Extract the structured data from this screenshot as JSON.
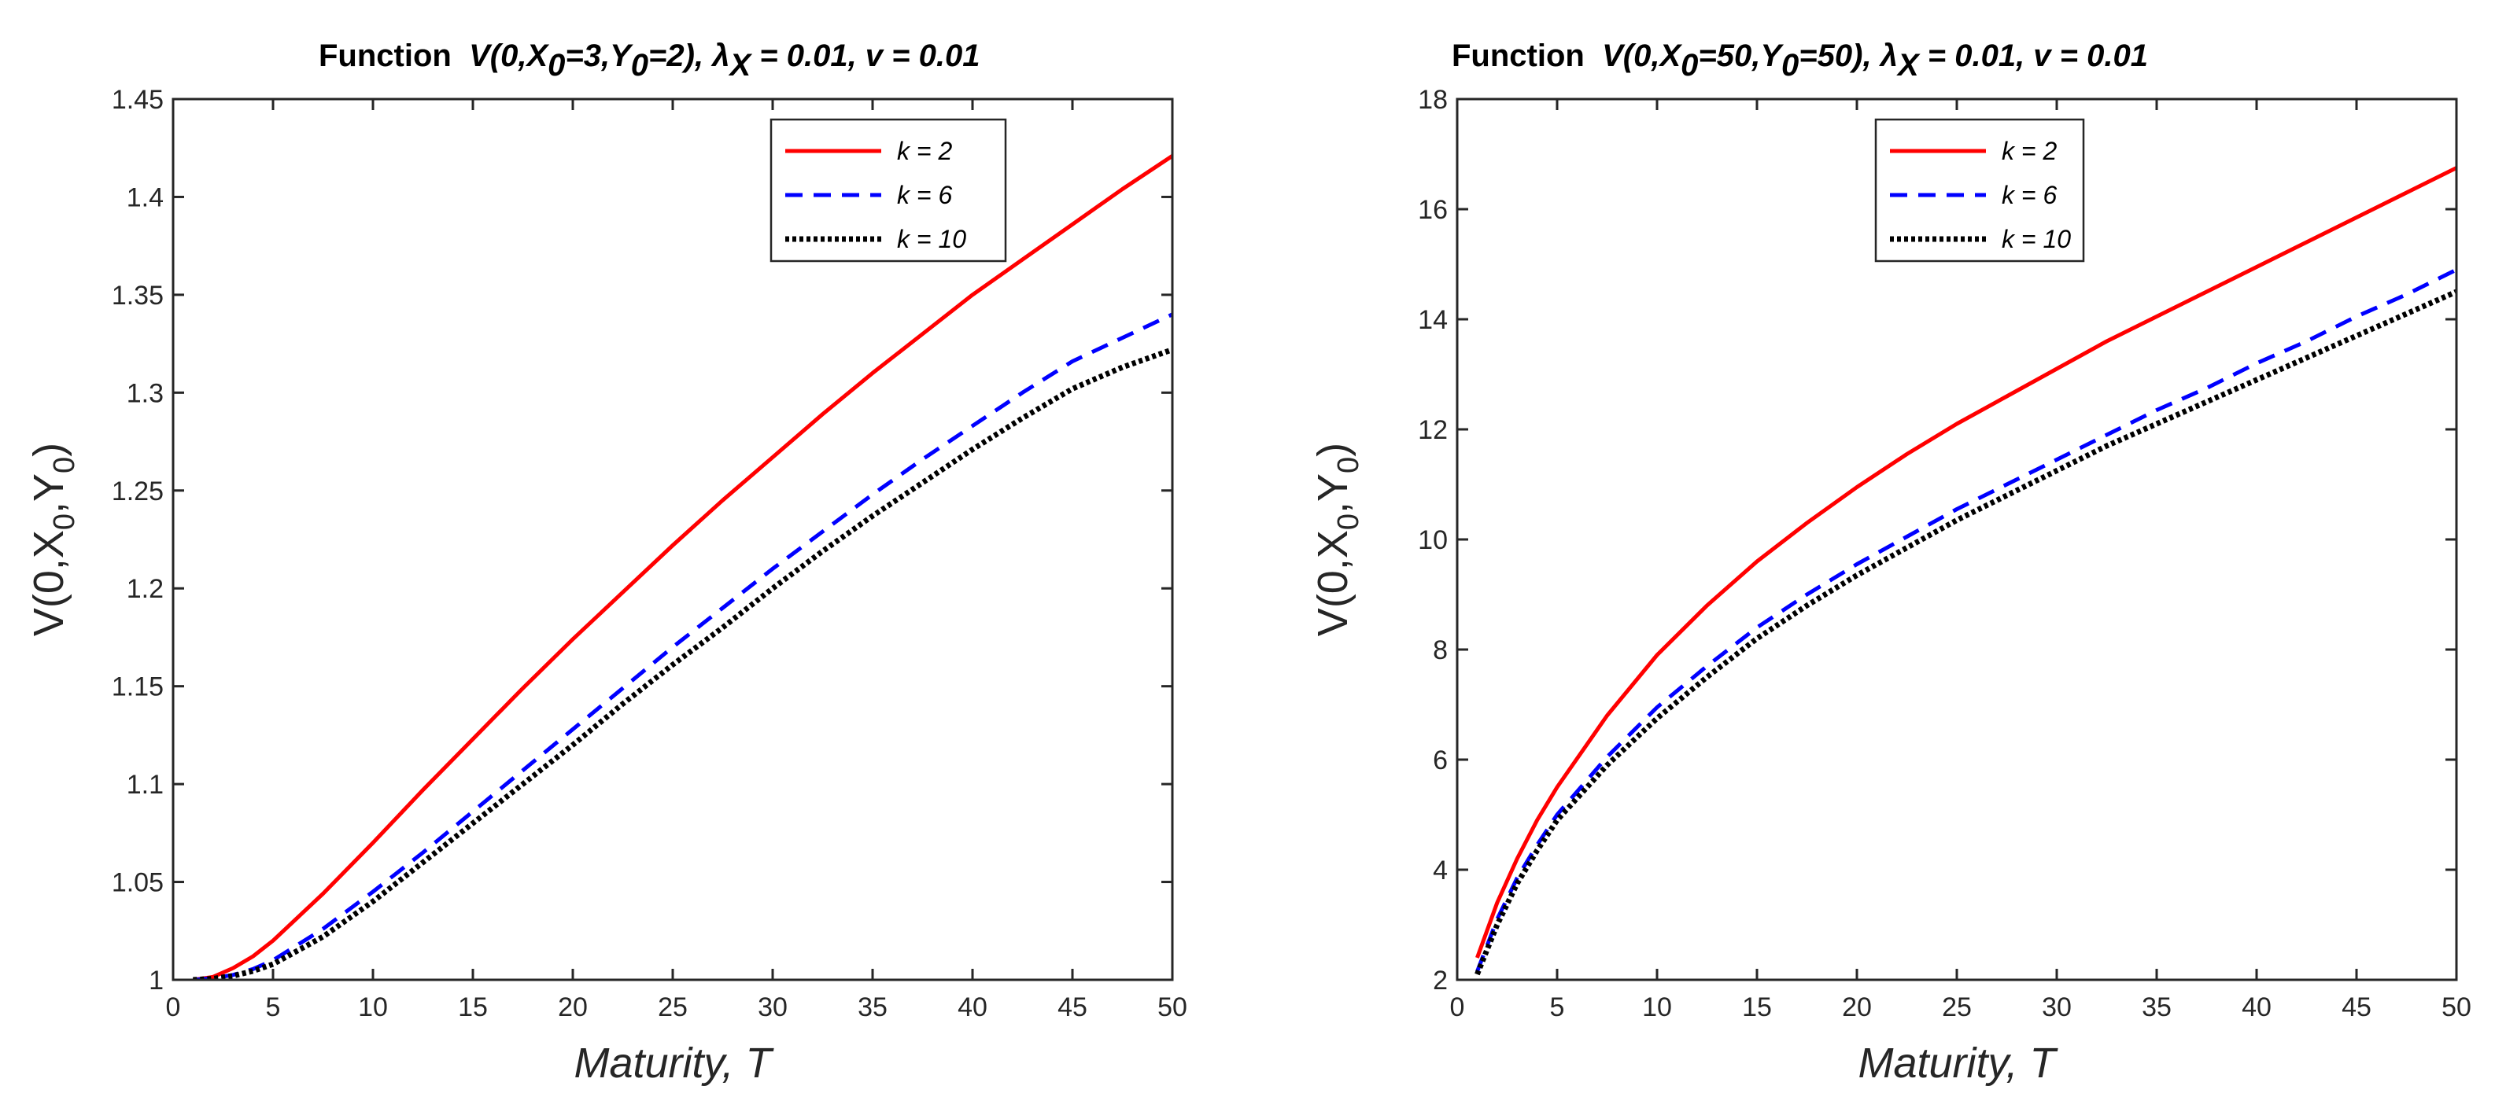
{
  "chart_data": [
    {
      "type": "line",
      "title": {
        "prefix": "Function",
        "formula": "V(0,X0=3,Y0=2), λX = 0.01, v = 0.01",
        "parts": [
          "V(0,X",
          "0",
          "=3,Y",
          "0",
          "=2), ",
          "λ",
          "X",
          " = 0.01, v = 0.01"
        ]
      },
      "xlabel": "Maturity, T",
      "ylabel": "V(0,X0,Y0)",
      "ylabel_parts": [
        "V(0,X",
        "0",
        ",Y",
        "0",
        ")"
      ],
      "xlim": [
        0,
        50
      ],
      "ylim": [
        1,
        1.45
      ],
      "xticks": [
        0,
        5,
        10,
        15,
        20,
        25,
        30,
        35,
        40,
        45,
        50
      ],
      "yticks": [
        1,
        1.05,
        1.1,
        1.15,
        1.2,
        1.25,
        1.3,
        1.35,
        1.4,
        1.45
      ],
      "xtick_labels": [
        "0",
        "5",
        "10",
        "15",
        "20",
        "25",
        "30",
        "35",
        "40",
        "45",
        "50"
      ],
      "ytick_labels": [
        "1",
        "1.05",
        "1.1",
        "1.15",
        "1.2",
        "1.25",
        "1.3",
        "1.35",
        "1.4",
        "1.45"
      ],
      "legend_position": "top-right",
      "x": [
        1,
        2,
        3,
        4,
        5,
        7.5,
        10,
        12.5,
        15,
        17.5,
        20,
        22.5,
        25,
        27.5,
        30,
        32.5,
        35,
        37.5,
        40,
        42.5,
        45,
        47.5,
        50
      ],
      "series": [
        {
          "name": "k = 2",
          "color": "#ff0000",
          "style": "solid",
          "values": [
            1.0,
            1.0015,
            1.006,
            1.012,
            1.02,
            1.044,
            1.07,
            1.097,
            1.123,
            1.149,
            1.174,
            1.198,
            1.222,
            1.245,
            1.267,
            1.289,
            1.31,
            1.33,
            1.35,
            1.368,
            1.386,
            1.404,
            1.421
          ]
        },
        {
          "name": "k = 6",
          "color": "#0000ff",
          "style": "dashed",
          "values": [
            1.0,
            1.0008,
            1.0025,
            1.0055,
            1.01,
            1.026,
            1.045,
            1.065,
            1.086,
            1.107,
            1.128,
            1.149,
            1.17,
            1.19,
            1.21,
            1.229,
            1.248,
            1.266,
            1.283,
            1.3,
            1.316,
            1.328,
            1.34
          ]
        },
        {
          "name": "k = 10",
          "color": "#000000",
          "style": "dotted",
          "values": [
            1.0,
            1.0006,
            1.002,
            1.0045,
            1.008,
            1.022,
            1.04,
            1.06,
            1.08,
            1.1,
            1.12,
            1.141,
            1.161,
            1.18,
            1.2,
            1.219,
            1.237,
            1.254,
            1.271,
            1.287,
            1.302,
            1.313,
            1.322
          ]
        }
      ]
    },
    {
      "type": "line",
      "title": {
        "prefix": "Function",
        "formula": "V(0,X0=50,Y0=50), λX = 0.01, v = 0.01",
        "parts": [
          "V(0,X",
          "0",
          "=50,Y",
          "0",
          "=50), ",
          "λ",
          "X",
          " = 0.01, v = 0.01"
        ]
      },
      "xlabel": "Maturity, T",
      "ylabel": "V(0,X0,Y0)",
      "ylabel_parts": [
        "V(0,X",
        "0",
        ",Y",
        "0",
        ")"
      ],
      "xlim": [
        0,
        50
      ],
      "ylim": [
        2,
        18
      ],
      "xticks": [
        0,
        5,
        10,
        15,
        20,
        25,
        30,
        35,
        40,
        45,
        50
      ],
      "yticks": [
        2,
        4,
        6,
        8,
        10,
        12,
        14,
        16,
        18
      ],
      "xtick_labels": [
        "0",
        "5",
        "10",
        "15",
        "20",
        "25",
        "30",
        "35",
        "40",
        "45",
        "50"
      ],
      "ytick_labels": [
        "2",
        "4",
        "6",
        "8",
        "10",
        "12",
        "14",
        "16",
        "18"
      ],
      "legend_position": "top-left",
      "x": [
        1,
        2,
        3,
        4,
        5,
        7.5,
        10,
        12.5,
        15,
        17.5,
        20,
        22.5,
        25,
        27.5,
        30,
        32.5,
        35,
        37.5,
        40,
        42.5,
        45,
        47.5,
        50
      ],
      "series": [
        {
          "name": "k = 2",
          "color": "#ff0000",
          "style": "solid",
          "values": [
            2.4,
            3.4,
            4.2,
            4.9,
            5.5,
            6.8,
            7.9,
            8.8,
            9.6,
            10.3,
            10.95,
            11.55,
            12.1,
            12.6,
            13.1,
            13.6,
            14.05,
            14.5,
            14.95,
            15.4,
            15.85,
            16.3,
            16.75
          ]
        },
        {
          "name": "k = 6",
          "color": "#0000ff",
          "style": "dashed",
          "values": [
            2.15,
            3.1,
            3.85,
            4.45,
            5.0,
            6.05,
            6.95,
            7.7,
            8.4,
            9.0,
            9.55,
            10.05,
            10.55,
            11.0,
            11.45,
            11.9,
            12.35,
            12.75,
            13.2,
            13.6,
            14.05,
            14.45,
            14.9
          ]
        },
        {
          "name": "k = 10",
          "color": "#000000",
          "style": "dotted",
          "values": [
            2.1,
            3.0,
            3.75,
            4.35,
            4.9,
            5.9,
            6.75,
            7.5,
            8.2,
            8.8,
            9.35,
            9.85,
            10.35,
            10.8,
            11.25,
            11.7,
            12.1,
            12.5,
            12.9,
            13.3,
            13.7,
            14.1,
            14.5
          ]
        }
      ]
    }
  ]
}
